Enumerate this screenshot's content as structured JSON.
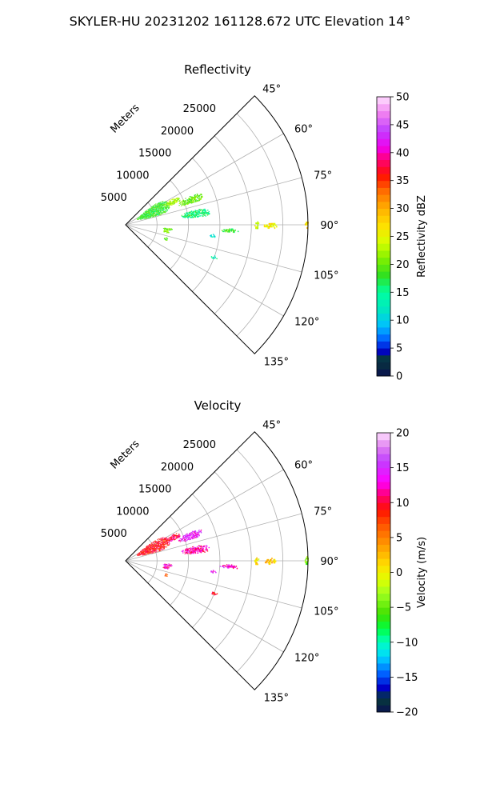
{
  "figure": {
    "title": "SKYLER-HU  20231202  161128.672 UTC Elevation 14°"
  },
  "chart_data": [
    {
      "type": "polar-ppi",
      "title": "Reflectivity",
      "radius_label": "Meters",
      "azimuth_range_deg": [
        45,
        135
      ],
      "radius_range_m": [
        0,
        29000
      ],
      "radial_ticks": [
        5000,
        10000,
        15000,
        20000,
        25000
      ],
      "radial_tick_labels": [
        "5000",
        "10000",
        "15000",
        "20000",
        "25000"
      ],
      "azimuth_ticks": [
        45,
        60,
        75,
        90,
        105,
        120,
        135
      ],
      "azimuth_tick_labels": [
        "45°",
        "60°",
        "75°",
        "90°",
        "105°",
        "120°",
        "135°"
      ],
      "grid": true,
      "colorbar": {
        "label": "Reflectivity dBZ",
        "range": [
          0,
          50
        ],
        "ticks": [
          0,
          5,
          10,
          15,
          20,
          25,
          30,
          35,
          40,
          45,
          50
        ],
        "tick_labels": [
          "0",
          "5",
          "10",
          "15",
          "20",
          "25",
          "30",
          "35",
          "40",
          "45",
          "50"
        ]
      },
      "echoes": [
        {
          "az": [
            55,
            74
          ],
          "r": [
            2000,
            7500
          ],
          "value": 18
        },
        {
          "az": [
            61,
            67
          ],
          "r": [
            7000,
            9500
          ],
          "value": 22
        },
        {
          "az": [
            66,
            72
          ],
          "r": [
            9000,
            13000
          ],
          "value": 20
        },
        {
          "az": [
            78,
            84
          ],
          "r": [
            9000,
            13500
          ],
          "value": 16
        },
        {
          "az": [
            88.5,
            91.5
          ],
          "r": [
            20500,
            21200
          ],
          "value": 24
        },
        {
          "az": [
            88.8,
            91.2
          ],
          "r": [
            22000,
            24000
          ],
          "value": 26
        },
        {
          "az": [
            88.5,
            91.5
          ],
          "r": [
            28500,
            29000
          ],
          "value": 27
        },
        {
          "az": [
            92,
            94
          ],
          "r": [
            15000,
            18000
          ],
          "value": 18
        },
        {
          "az": [
            96,
            98
          ],
          "r": [
            13500,
            14500
          ],
          "value": 13
        },
        {
          "az": [
            94,
            97
          ],
          "r": [
            6000,
            7500
          ],
          "value": 20
        },
        {
          "az": [
            97,
            101
          ],
          "r": [
            6000,
            7000
          ],
          "value": 22
        },
        {
          "az": [
            109,
            111
          ],
          "r": [
            14500,
            15500
          ],
          "value": 14
        },
        {
          "az": [
            107,
            111
          ],
          "r": [
            6500,
            7000
          ],
          "value": 18
        }
      ]
    },
    {
      "type": "polar-ppi",
      "title": "Velocity",
      "radius_label": "Meters",
      "azimuth_range_deg": [
        45,
        135
      ],
      "radius_range_m": [
        0,
        29000
      ],
      "radial_ticks": [
        5000,
        10000,
        15000,
        20000,
        25000
      ],
      "radial_tick_labels": [
        "5000",
        "10000",
        "15000",
        "20000",
        "25000"
      ],
      "azimuth_ticks": [
        45,
        60,
        75,
        90,
        105,
        120,
        135
      ],
      "azimuth_tick_labels": [
        "45°",
        "60°",
        "75°",
        "90°",
        "105°",
        "120°",
        "135°"
      ],
      "grid": true,
      "colorbar": {
        "label": "Velocity (m/s)",
        "range": [
          -20,
          20
        ],
        "ticks": [
          -20,
          -15,
          -10,
          -5,
          0,
          5,
          10,
          15,
          20
        ],
        "tick_labels": [
          "−20",
          "−15",
          "−10",
          "−5",
          "0",
          "5",
          "10",
          "15",
          "20"
        ]
      },
      "echoes": [
        {
          "az": [
            55,
            74
          ],
          "r": [
            2000,
            7500
          ],
          "value": 9
        },
        {
          "az": [
            61,
            67
          ],
          "r": [
            7000,
            9500
          ],
          "value": 10
        },
        {
          "az": [
            66,
            72
          ],
          "r": [
            9000,
            13000
          ],
          "value": 14
        },
        {
          "az": [
            78,
            84
          ],
          "r": [
            9000,
            13500
          ],
          "value": 12
        },
        {
          "az": [
            88.5,
            91.5
          ],
          "r": [
            20500,
            21200
          ],
          "value": 1
        },
        {
          "az": [
            88.8,
            91.2
          ],
          "r": [
            22000,
            24000
          ],
          "value": 2
        },
        {
          "az": [
            88.5,
            91.5
          ],
          "r": [
            28500,
            29000
          ],
          "value": -4
        },
        {
          "az": [
            92,
            94
          ],
          "r": [
            15000,
            18000
          ],
          "value": 13
        },
        {
          "az": [
            96,
            98
          ],
          "r": [
            13500,
            14500
          ],
          "value": 14
        },
        {
          "az": [
            94,
            97
          ],
          "r": [
            6000,
            7500
          ],
          "value": 13
        },
        {
          "az": [
            97,
            101
          ],
          "r": [
            6000,
            7000
          ],
          "value": 12
        },
        {
          "az": [
            109,
            111
          ],
          "r": [
            14500,
            15500
          ],
          "value": 9
        },
        {
          "az": [
            107,
            111
          ],
          "r": [
            6500,
            7000
          ],
          "value": 6
        }
      ]
    }
  ]
}
